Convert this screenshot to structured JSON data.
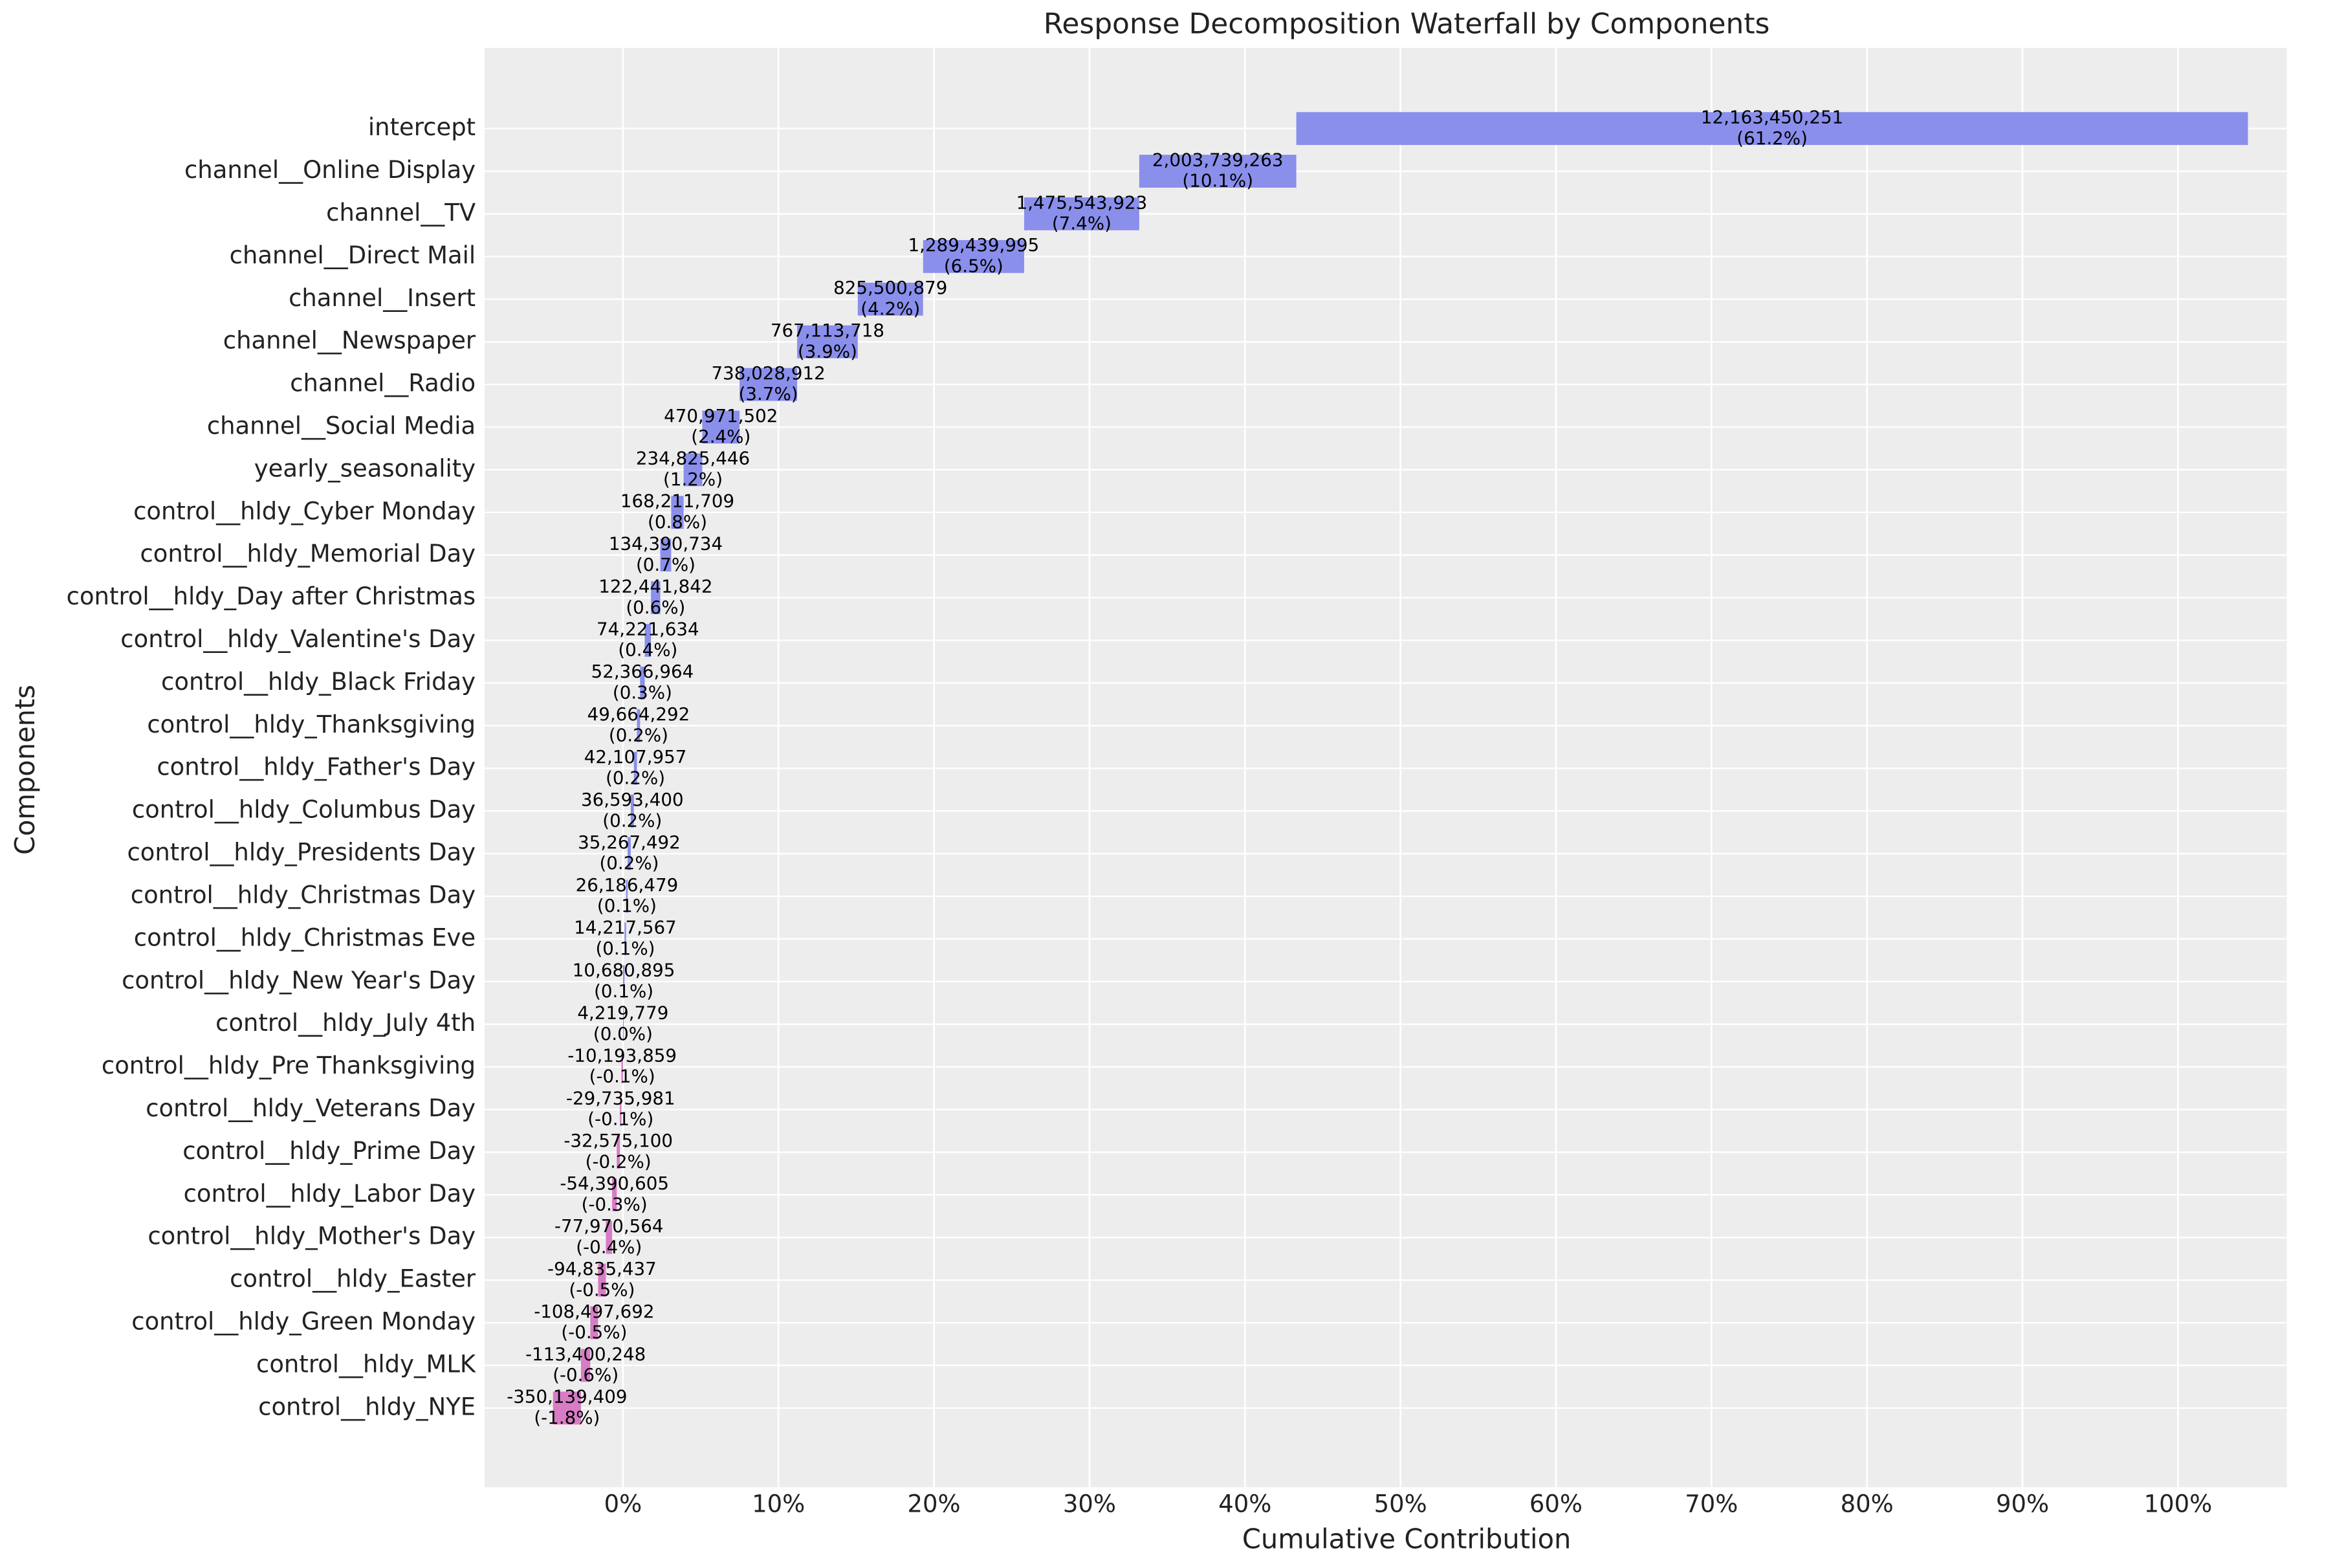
{
  "chart_data": {
    "type": "waterfall",
    "title": "Response Decomposition Waterfall by Components",
    "xlabel": "Cumulative Contribution",
    "ylabel": "Components",
    "categories": [
      "intercept",
      "channel__Online Display",
      "channel__TV",
      "channel__Direct Mail",
      "channel__Insert",
      "channel__Newspaper",
      "channel__Radio",
      "channel__Social Media",
      "yearly_seasonality",
      "control__hldy_Cyber Monday",
      "control__hldy_Memorial Day",
      "control__hldy_Day after Christmas",
      "control__hldy_Valentine's Day",
      "control__hldy_Black Friday",
      "control__hldy_Thanksgiving",
      "control__hldy_Father's Day",
      "control__hldy_Columbus Day",
      "control__hldy_Presidents Day",
      "control__hldy_Christmas Day",
      "control__hldy_Christmas Eve",
      "control__hldy_New Year's Day",
      "control__hldy_July 4th",
      "control__hldy_Pre Thanksgiving",
      "control__hldy_Veterans Day",
      "control__hldy_Prime Day",
      "control__hldy_Labor Day",
      "control__hldy_Mother's Day",
      "control__hldy_Easter",
      "control__hldy_Green Monday",
      "control__hldy_MLK",
      "control__hldy_NYE"
    ],
    "values": [
      12163450251,
      2003739263,
      1475543923,
      1289439995,
      825500879,
      767113718,
      738028912,
      470971502,
      234825446,
      168211709,
      134390734,
      122441842,
      74221634,
      52366964,
      49664292,
      42107957,
      36593400,
      35267492,
      26186479,
      14217567,
      10680895,
      4219779,
      -10193859,
      -29735981,
      -32575100,
      -54390605,
      -77970564,
      -94835437,
      -108497692,
      -113400248,
      -350139409
    ],
    "value_labels": [
      "12,163,450,251",
      "2,003,739,263",
      "1,475,543,923",
      "1,289,439,995",
      "825,500,879",
      "767,113,718",
      "738,028,912",
      "470,971,502",
      "234,825,446",
      "168,211,709",
      "134,390,734",
      "122,441,842",
      "74,221,634",
      "52,366,964",
      "49,664,292",
      "42,107,957",
      "36,593,400",
      "35,267,492",
      "26,186,479",
      "14,217,567",
      "10,680,895",
      "4,219,779",
      "-10,193,859",
      "-29,735,981",
      "-32,575,100",
      "-54,390,605",
      "-77,970,564",
      "-94,835,437",
      "-108,497,692",
      "-113,400,248",
      "-350,139,409"
    ],
    "shares": [
      61.2,
      10.1,
      7.4,
      6.5,
      4.2,
      3.9,
      3.7,
      2.4,
      1.2,
      0.8,
      0.7,
      0.6,
      0.4,
      0.3,
      0.2,
      0.2,
      0.2,
      0.2,
      0.1,
      0.1,
      0.1,
      0.0,
      -0.1,
      -0.1,
      -0.2,
      -0.3,
      -0.4,
      -0.5,
      -0.5,
      -0.6,
      -1.8
    ],
    "share_labels": [
      "(61.2%)",
      "(10.1%)",
      "(7.4%)",
      "(6.5%)",
      "(4.2%)",
      "(3.9%)",
      "(3.7%)",
      "(2.4%)",
      "(1.2%)",
      "(0.8%)",
      "(0.7%)",
      "(0.6%)",
      "(0.4%)",
      "(0.3%)",
      "(0.2%)",
      "(0.2%)",
      "(0.2%)",
      "(0.2%)",
      "(0.1%)",
      "(0.1%)",
      "(0.1%)",
      "(0.0%)",
      "(-0.1%)",
      "(-0.1%)",
      "(-0.2%)",
      "(-0.3%)",
      "(-0.4%)",
      "(-0.5%)",
      "(-0.5%)",
      "(-0.6%)",
      "(-1.8%)"
    ],
    "color": "#8a8fec",
    "negative_color": "#d77cc5",
    "xlim": [
      -8.9,
      107
    ],
    "xticks": [
      {
        "value": 0,
        "label": "0%"
      },
      {
        "value": 10,
        "label": "10%"
      },
      {
        "value": 20,
        "label": "20%"
      },
      {
        "value": 30,
        "label": "30%"
      },
      {
        "value": 40,
        "label": "40%"
      },
      {
        "value": 50,
        "label": "50%"
      },
      {
        "value": 60,
        "label": "60%"
      },
      {
        "value": 70,
        "label": "70%"
      },
      {
        "value": 80,
        "label": "80%"
      },
      {
        "value": 90,
        "label": "90%"
      },
      {
        "value": 100,
        "label": "100%"
      }
    ],
    "grid": true
  }
}
